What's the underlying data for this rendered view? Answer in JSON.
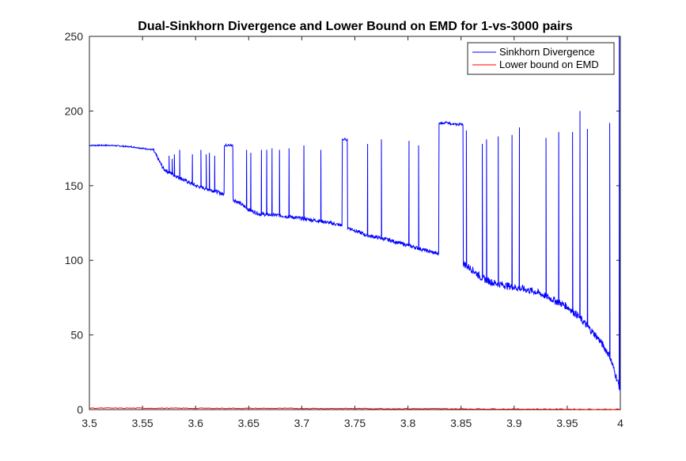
{
  "chart_data": {
    "type": "line",
    "title": "Dual-Sinkhorn Divergence and Lower Bound on EMD for 1-vs-3000 pairs",
    "xlabel": "",
    "ylabel": "",
    "xlim": [
      3.5,
      4.0
    ],
    "ylim": [
      0,
      250
    ],
    "xticks": [
      3.5,
      3.55,
      3.6,
      3.65,
      3.7,
      3.75,
      3.8,
      3.85,
      3.9,
      3.95,
      4.0
    ],
    "xtick_labels": [
      "3.5",
      "3.55",
      "3.6",
      "3.65",
      "3.7",
      "3.75",
      "3.8",
      "3.85",
      "3.9",
      "3.95",
      "4"
    ],
    "yticks": [
      0,
      50,
      100,
      150,
      200,
      250
    ],
    "ytick_labels": [
      "0",
      "50",
      "100",
      "150",
      "200",
      "250"
    ],
    "grid": false,
    "legend_position": "top-right",
    "series": [
      {
        "name": "Sinkhorn Divergence",
        "color": "#0000ff",
        "baseline": [
          [
            3.5,
            177
          ],
          [
            3.52,
            177
          ],
          [
            3.54,
            176
          ],
          [
            3.56,
            174
          ],
          [
            3.57,
            161
          ],
          [
            3.58,
            157
          ],
          [
            3.6,
            150
          ],
          [
            3.62,
            146
          ],
          [
            3.63,
            143
          ],
          [
            3.64,
            139
          ],
          [
            3.65,
            134
          ],
          [
            3.66,
            131
          ],
          [
            3.68,
            130
          ],
          [
            3.7,
            128
          ],
          [
            3.72,
            126
          ],
          [
            3.74,
            123
          ],
          [
            3.75,
            120
          ],
          [
            3.76,
            117
          ],
          [
            3.78,
            114
          ],
          [
            3.8,
            110
          ],
          [
            3.82,
            106
          ],
          [
            3.83,
            104
          ],
          [
            3.85,
            99
          ],
          [
            3.86,
            94
          ],
          [
            3.87,
            88
          ],
          [
            3.88,
            85
          ],
          [
            3.9,
            82
          ],
          [
            3.92,
            79
          ],
          [
            3.93,
            76
          ],
          [
            3.95,
            69
          ],
          [
            3.96,
            63
          ],
          [
            3.97,
            55
          ],
          [
            3.98,
            47
          ],
          [
            3.99,
            36
          ],
          [
            4.0,
            13
          ]
        ],
        "plateaus": [
          {
            "start": 3.627,
            "end": 3.635,
            "value": 177
          },
          {
            "start": 3.738,
            "end": 3.743,
            "value": 181
          },
          {
            "start": 3.829,
            "end": 3.84,
            "value": 192
          },
          {
            "start": 3.84,
            "end": 3.852,
            "value": 191
          }
        ],
        "spikes": [
          [
            3.575,
            170
          ],
          [
            3.578,
            168
          ],
          [
            3.58,
            171
          ],
          [
            3.585,
            174
          ],
          [
            3.597,
            171
          ],
          [
            3.605,
            174
          ],
          [
            3.61,
            171
          ],
          [
            3.613,
            172
          ],
          [
            3.618,
            170
          ],
          [
            3.648,
            174
          ],
          [
            3.652,
            172
          ],
          [
            3.662,
            174
          ],
          [
            3.667,
            174
          ],
          [
            3.672,
            175
          ],
          [
            3.679,
            174
          ],
          [
            3.688,
            175
          ],
          [
            3.702,
            177
          ],
          [
            3.718,
            174
          ],
          [
            3.762,
            178
          ],
          [
            3.775,
            181
          ],
          [
            3.801,
            180
          ],
          [
            3.81,
            177
          ],
          [
            3.855,
            187
          ],
          [
            3.87,
            178
          ],
          [
            3.874,
            181
          ],
          [
            3.885,
            183
          ],
          [
            3.898,
            184
          ],
          [
            3.905,
            189
          ],
          [
            3.93,
            182
          ],
          [
            3.942,
            186
          ],
          [
            3.955,
            186
          ],
          [
            3.962,
            200
          ],
          [
            3.969,
            188
          ],
          [
            3.99,
            192
          ],
          [
            3.999,
            250
          ]
        ]
      },
      {
        "name": "Lower bound on EMD",
        "color": "#ff0000",
        "values": [
          [
            3.5,
            1.0
          ],
          [
            3.6,
            0.9
          ],
          [
            3.7,
            0.8
          ],
          [
            3.8,
            0.6
          ],
          [
            3.9,
            0.4
          ],
          [
            4.0,
            0.2
          ]
        ]
      }
    ]
  }
}
